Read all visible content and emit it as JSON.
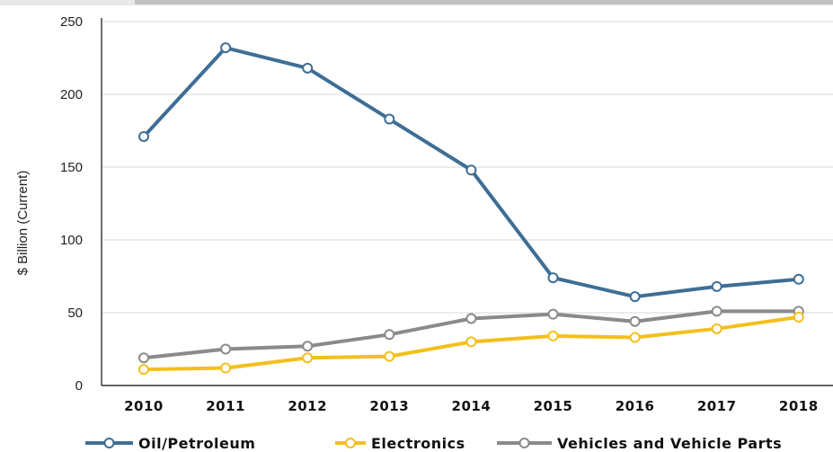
{
  "chart_data": {
    "type": "line",
    "title": "",
    "xlabel": "",
    "ylabel": "$ Billion (Current)",
    "x": [
      "2010",
      "2011",
      "2012",
      "2013",
      "2014",
      "2015",
      "2016",
      "2017",
      "2018"
    ],
    "yticks": [
      "0",
      "50",
      "100",
      "150",
      "200",
      "250"
    ],
    "ylim": [
      0,
      250
    ],
    "grid": true,
    "legend_position": "bottom",
    "series": [
      {
        "name": "Oil/Petroleum",
        "color": "#3e6e95",
        "values": [
          171,
          232,
          218,
          183,
          148,
          74,
          61,
          68,
          73
        ]
      },
      {
        "name": "Electronics",
        "color": "#f2c01c",
        "values": [
          11,
          12,
          19,
          20,
          30,
          34,
          33,
          39,
          47
        ]
      },
      {
        "name": "Vehicles and Vehicle Parts",
        "color": "#8a8a8a",
        "values": [
          19,
          25,
          27,
          35,
          46,
          49,
          44,
          51,
          51
        ]
      }
    ]
  }
}
